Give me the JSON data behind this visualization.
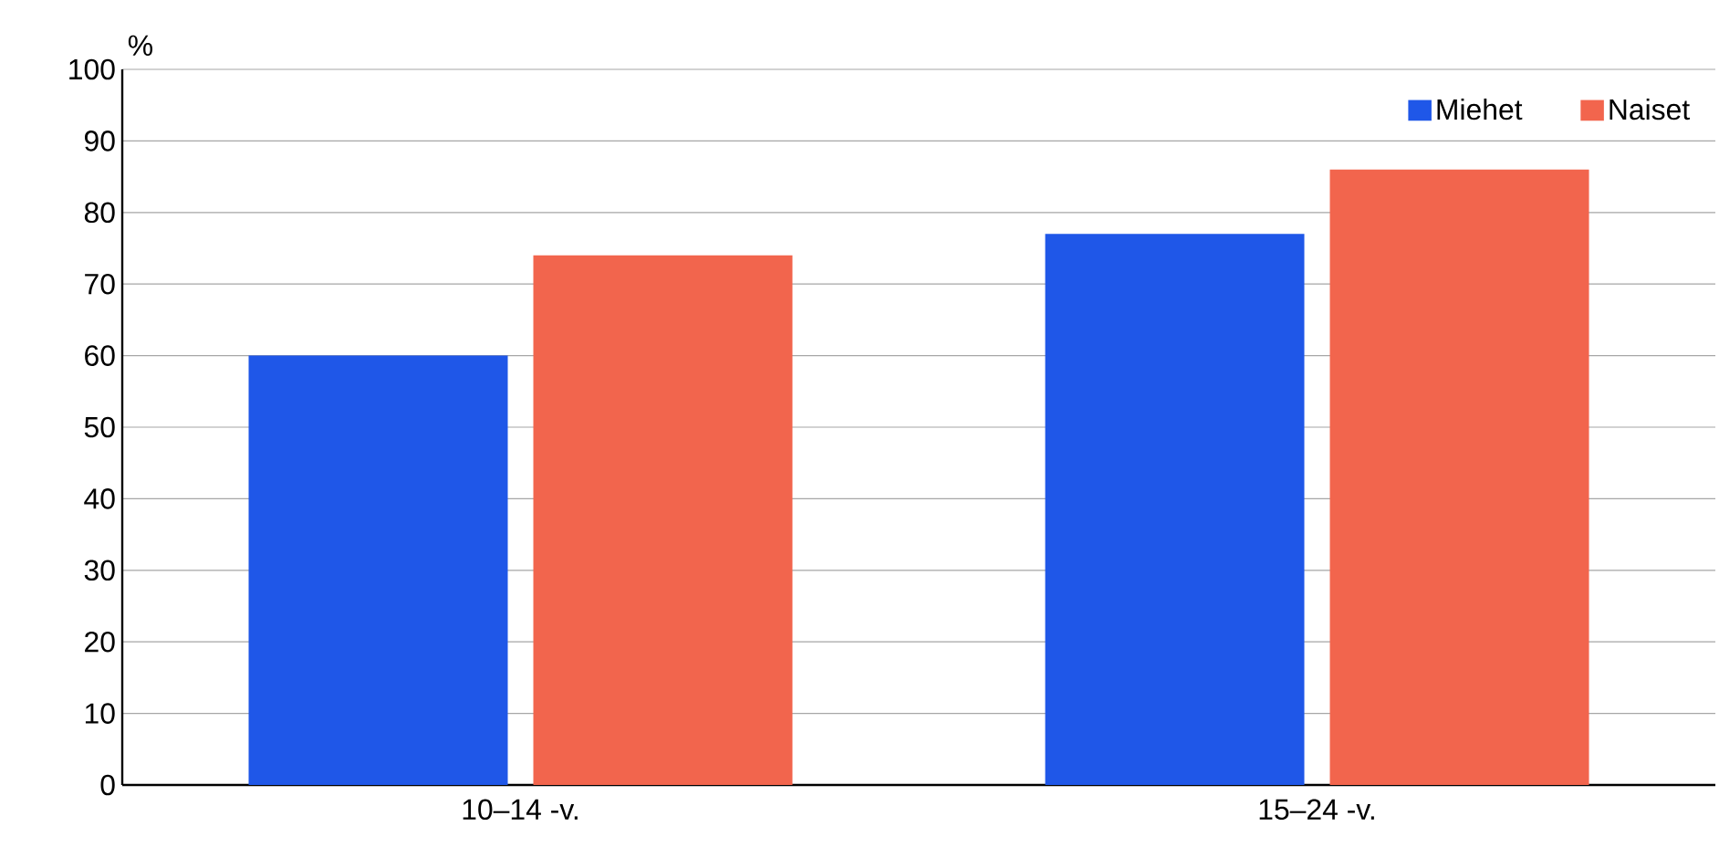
{
  "chart_data": {
    "type": "bar",
    "ylabel": "%",
    "categories": [
      "10–14 -v.",
      "15–24 -v."
    ],
    "series": [
      {
        "name": "Miehet",
        "color": "#1f57e8",
        "values": [
          60,
          77
        ]
      },
      {
        "name": "Naiset",
        "color": "#f2654d",
        "values": [
          74,
          86
        ]
      }
    ],
    "ylim": [
      0,
      100
    ],
    "yticks": [
      0,
      10,
      20,
      30,
      40,
      50,
      60,
      70,
      80,
      90,
      100
    ],
    "grid": "y",
    "legend": "top right"
  }
}
